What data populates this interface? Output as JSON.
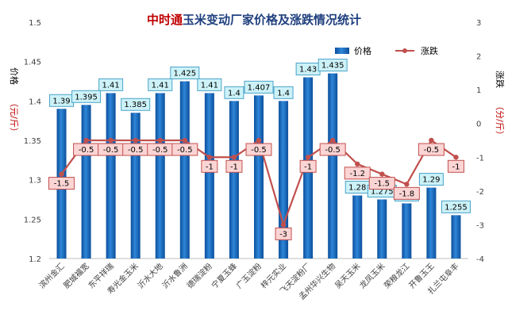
{
  "chart_data": {
    "type": "bar+line",
    "title_prefix": "中时通",
    "title_rest": "玉米变动厂家价格及涨跌情况统计",
    "ylabel_left_a": "价格",
    "ylabel_left_b": "（元/斤）",
    "ylabel_right_a": "涨跌",
    "ylabel_right_b": "（分/斤）",
    "ylim_left": [
      1.2,
      1.5
    ],
    "ylim_right": [
      -4,
      3
    ],
    "yticks_left": [
      "1.2",
      "1.25",
      "1.3",
      "1.35",
      "1.4",
      "1.45",
      "1.5"
    ],
    "yticks_right": [
      "-4",
      "-3",
      "-2",
      "-1",
      "0",
      "1",
      "2",
      "3"
    ],
    "legend_position": "top-right",
    "categories": [
      "滨州金汇",
      "肥城福宽",
      "东平祥瑞",
      "寿光金玉米",
      "沂水大地",
      "沂水鲁洲",
      "德瑞淀粉",
      "宁夏玉蜂",
      "广玉淀粉",
      "梓元实业",
      "飞天淀粉厂",
      "孟州华兴生物",
      "吴天玉米",
      "龙凤玉米",
      "荣粮龙江",
      "开鲁玉王",
      "扎兰屯阜丰"
    ],
    "series": [
      {
        "name": "价格",
        "axis": "left",
        "type": "bar",
        "color": "#1f6fbf",
        "values": [
          1.39,
          1.395,
          1.41,
          1.385,
          1.41,
          1.425,
          1.41,
          1.4,
          1.407,
          1.4,
          1.43,
          1.435,
          1.28,
          1.275,
          1.27,
          1.29,
          1.255
        ],
        "labels": [
          "1.39",
          "1.395",
          "1.41",
          "1.385",
          "1.41",
          "1.425",
          "1.41",
          "1.4",
          "1.407",
          "1.4",
          "1.43",
          "1.435",
          "1.28",
          "1.275",
          "1.27",
          "1.29",
          "1.255"
        ]
      },
      {
        "name": "涨跌",
        "axis": "right",
        "type": "line",
        "color": "#c0504d",
        "values": [
          -1.5,
          -0.5,
          -0.5,
          -0.5,
          -0.5,
          -0.5,
          -1,
          -1,
          -0.5,
          -3,
          -1,
          -0.5,
          -1.2,
          -1.5,
          -1.8,
          -0.5,
          -1
        ],
        "labels": [
          "-1.5",
          "-0.5",
          "-0.5",
          "-0.5",
          "-0.5",
          "-0.5",
          "-1",
          "-1",
          "-0.5",
          "-3",
          "-1",
          "-0.5",
          "-1.2",
          "-1.5",
          "-1.8",
          "-0.5",
          "-1"
        ]
      }
    ]
  }
}
